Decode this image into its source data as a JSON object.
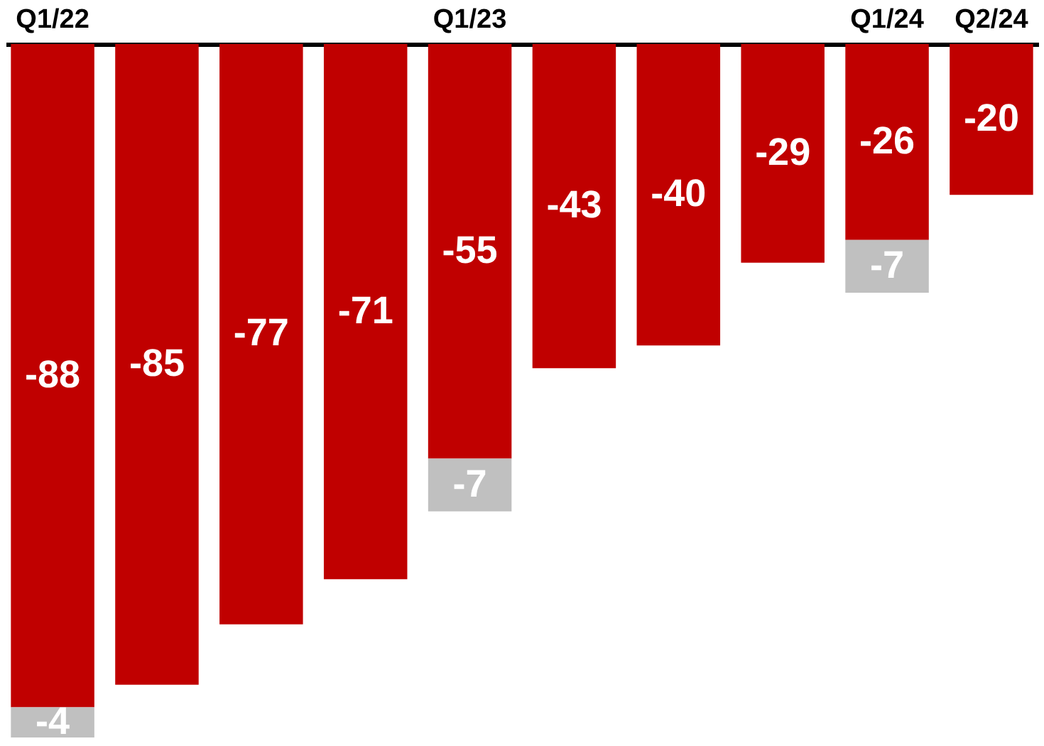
{
  "chart_data": {
    "type": "bar",
    "stacked": true,
    "data_labels": true,
    "tick_labels": "x",
    "grid": false,
    "categories": [
      "Q1/22",
      null,
      null,
      null,
      "Q1/23",
      null,
      null,
      null,
      "Q1/24",
      "Q2/24"
    ],
    "ylim": [
      -92,
      0
    ],
    "series": [
      {
        "color": "#c00000",
        "values": [
          -88,
          -85,
          -77,
          -71,
          -55,
          -43,
          -40,
          -29,
          -26,
          -20
        ]
      },
      {
        "color": "#c0c0c0",
        "values": [
          -4,
          null,
          null,
          null,
          -7,
          null,
          null,
          null,
          -7,
          null
        ]
      }
    ]
  }
}
